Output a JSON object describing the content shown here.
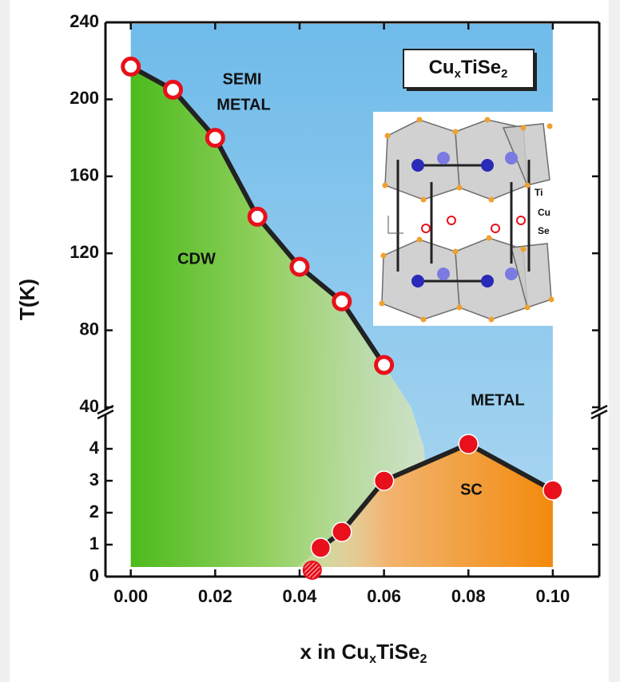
{
  "chart_data": [
    {
      "type": "scatter",
      "ylabel": "T(K)",
      "ylim": [
        40,
        240
      ],
      "yticks": [
        40,
        80,
        120,
        160,
        200,
        240
      ],
      "series": [
        {
          "color": "#e8101a",
          "marker": "open",
          "line": true,
          "x": [
            0,
            0.01,
            0.02,
            0.03,
            0.04,
            0.05,
            0.06
          ],
          "values": [
            217,
            205,
            180,
            139,
            113,
            95,
            62
          ]
        }
      ],
      "annotations": [
        "SEMI",
        "METAL",
        "CDW"
      ],
      "inset_title": [
        "Cu",
        "x",
        "TiSe",
        "2"
      ],
      "inset_labels": [
        {
          "text": "Ti",
          "color": "#1f1fd0"
        },
        {
          "text": "Cu",
          "color": "#e8101a"
        },
        {
          "text": "Se",
          "color": "#f0a030"
        }
      ]
    },
    {
      "type": "scatter",
      "xlabel": [
        "x in Cu",
        "x",
        "TiSe",
        "2"
      ],
      "xlim": [
        -0.006,
        0.111
      ],
      "xticks": [
        {
          "value": 0,
          "label": "0.00"
        },
        {
          "value": 0.02,
          "label": "0.02"
        },
        {
          "value": 0.04,
          "label": "0.04"
        },
        {
          "value": 0.06,
          "label": "0.06"
        },
        {
          "value": 0.08,
          "label": "0.08"
        },
        {
          "value": 0.1,
          "label": "0.10"
        }
      ],
      "ylim": [
        0,
        5
      ],
      "yticks": [
        0,
        1,
        2,
        3,
        4
      ],
      "series": [
        {
          "color": "#e8101a",
          "marker": "hatched",
          "x": [
            0.043
          ],
          "values": [
            0.2
          ]
        },
        {
          "color": "#e8101a",
          "marker": "filled",
          "line": true,
          "x": [
            0.045,
            0.05,
            0.06,
            0.08,
            0.1
          ],
          "values": [
            0.9,
            1.4,
            3.0,
            4.15,
            2.7
          ]
        }
      ],
      "annotations": [
        "METAL",
        "SC"
      ]
    }
  ]
}
